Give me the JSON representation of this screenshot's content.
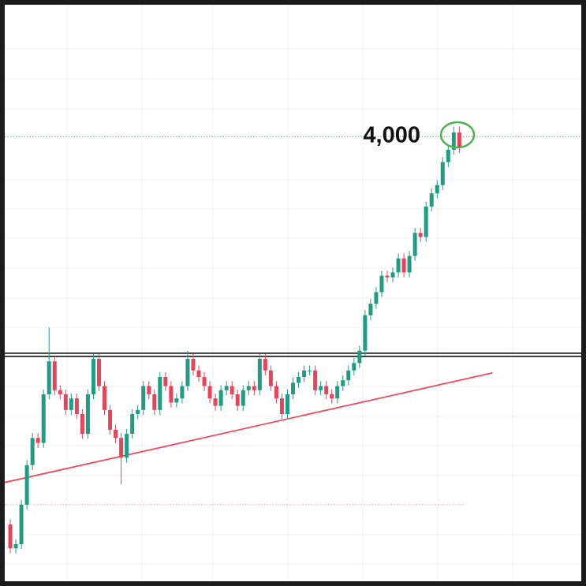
{
  "chart_data": {
    "type": "candlestick",
    "xlim": [
      -1,
      103
    ],
    "ylim": [
      1300,
      4800
    ],
    "up_color": "#1f9d84",
    "down_color": "#e9435a",
    "open": [
      1645,
      1500,
      1525,
      1765,
      2005,
      2170,
      2140,
      2435,
      2635,
      2460,
      2435,
      2340,
      2410,
      2315,
      2195,
      2435,
      2650,
      2485,
      2340,
      2220,
      2170,
      2050,
      2195,
      2315,
      2340,
      2485,
      2435,
      2340,
      2540,
      2485,
      2385,
      2410,
      2485,
      2650,
      2580,
      2540,
      2485,
      2410,
      2365,
      2460,
      2485,
      2435,
      2365,
      2460,
      2485,
      2460,
      2650,
      2580,
      2485,
      2410,
      2315,
      2435,
      2505,
      2540,
      2580,
      2580,
      2460,
      2485,
      2435,
      2410,
      2485,
      2520,
      2580,
      2625,
      2700,
      2915,
      2985,
      3055,
      3155,
      3145,
      3175,
      3260,
      3175,
      3275,
      3415,
      3390,
      3575,
      3655,
      3705,
      3845,
      3920,
      4025
    ],
    "high": [
      1675,
      1555,
      1795,
      2035,
      2200,
      2200,
      2465,
      2840,
      2665,
      2490,
      2465,
      2440,
      2440,
      2345,
      2465,
      2680,
      2680,
      2515,
      2370,
      2250,
      2200,
      2225,
      2345,
      2370,
      2515,
      2515,
      2465,
      2570,
      2570,
      2515,
      2440,
      2515,
      2700,
      2680,
      2610,
      2570,
      2515,
      2440,
      2490,
      2515,
      2515,
      2465,
      2490,
      2515,
      2515,
      2680,
      2680,
      2610,
      2515,
      2440,
      2465,
      2535,
      2570,
      2610,
      2610,
      2610,
      2515,
      2515,
      2465,
      2515,
      2550,
      2610,
      2655,
      2730,
      2945,
      3015,
      3085,
      3185,
      3185,
      3205,
      3290,
      3290,
      3305,
      3445,
      3445,
      3605,
      3685,
      3735,
      3875,
      3950,
      4060,
      4060
    ],
    "low": [
      1470,
      1470,
      1495,
      1735,
      1975,
      2110,
      2110,
      2405,
      2430,
      2405,
      2310,
      2310,
      2285,
      2165,
      2165,
      2405,
      2455,
      2310,
      2190,
      2140,
      1890,
      2020,
      2165,
      2285,
      2310,
      2405,
      2310,
      2310,
      2455,
      2355,
      2355,
      2380,
      2455,
      2550,
      2510,
      2455,
      2380,
      2335,
      2335,
      2430,
      2405,
      2335,
      2335,
      2430,
      2430,
      2430,
      2550,
      2455,
      2380,
      2285,
      2285,
      2405,
      2475,
      2510,
      2550,
      2430,
      2430,
      2405,
      2380,
      2380,
      2455,
      2490,
      2550,
      2595,
      2670,
      2885,
      2955,
      3025,
      3115,
      3115,
      3145,
      3145,
      3145,
      3245,
      3360,
      3360,
      3545,
      3625,
      3675,
      3815,
      3890,
      3900
    ],
    "close": [
      1500,
      1525,
      1765,
      2005,
      2170,
      2140,
      2435,
      2635,
      2460,
      2435,
      2340,
      2410,
      2315,
      2195,
      2435,
      2650,
      2485,
      2340,
      2220,
      2170,
      2050,
      2195,
      2315,
      2340,
      2485,
      2435,
      2340,
      2540,
      2485,
      2385,
      2410,
      2485,
      2650,
      2580,
      2540,
      2485,
      2410,
      2365,
      2460,
      2485,
      2435,
      2365,
      2460,
      2485,
      2460,
      2650,
      2580,
      2485,
      2410,
      2315,
      2435,
      2505,
      2540,
      2580,
      2580,
      2460,
      2485,
      2435,
      2410,
      2485,
      2520,
      2580,
      2625,
      2700,
      2915,
      2985,
      3055,
      3155,
      3145,
      3175,
      3260,
      3175,
      3275,
      3415,
      3390,
      3575,
      3655,
      3705,
      3845,
      3920,
      4025,
      3930
    ],
    "resistance": {
      "value": 2675,
      "color": "#111111"
    },
    "trendline": {
      "x": [
        -1,
        87
      ],
      "values": [
        1900,
        2565
      ],
      "color": "#f04a5c"
    },
    "levels": [
      {
        "value": 4000,
        "label": "4,000",
        "color": "#4caf78"
      },
      {
        "value": 1765,
        "color": "#f0a0a8"
      }
    ]
  }
}
